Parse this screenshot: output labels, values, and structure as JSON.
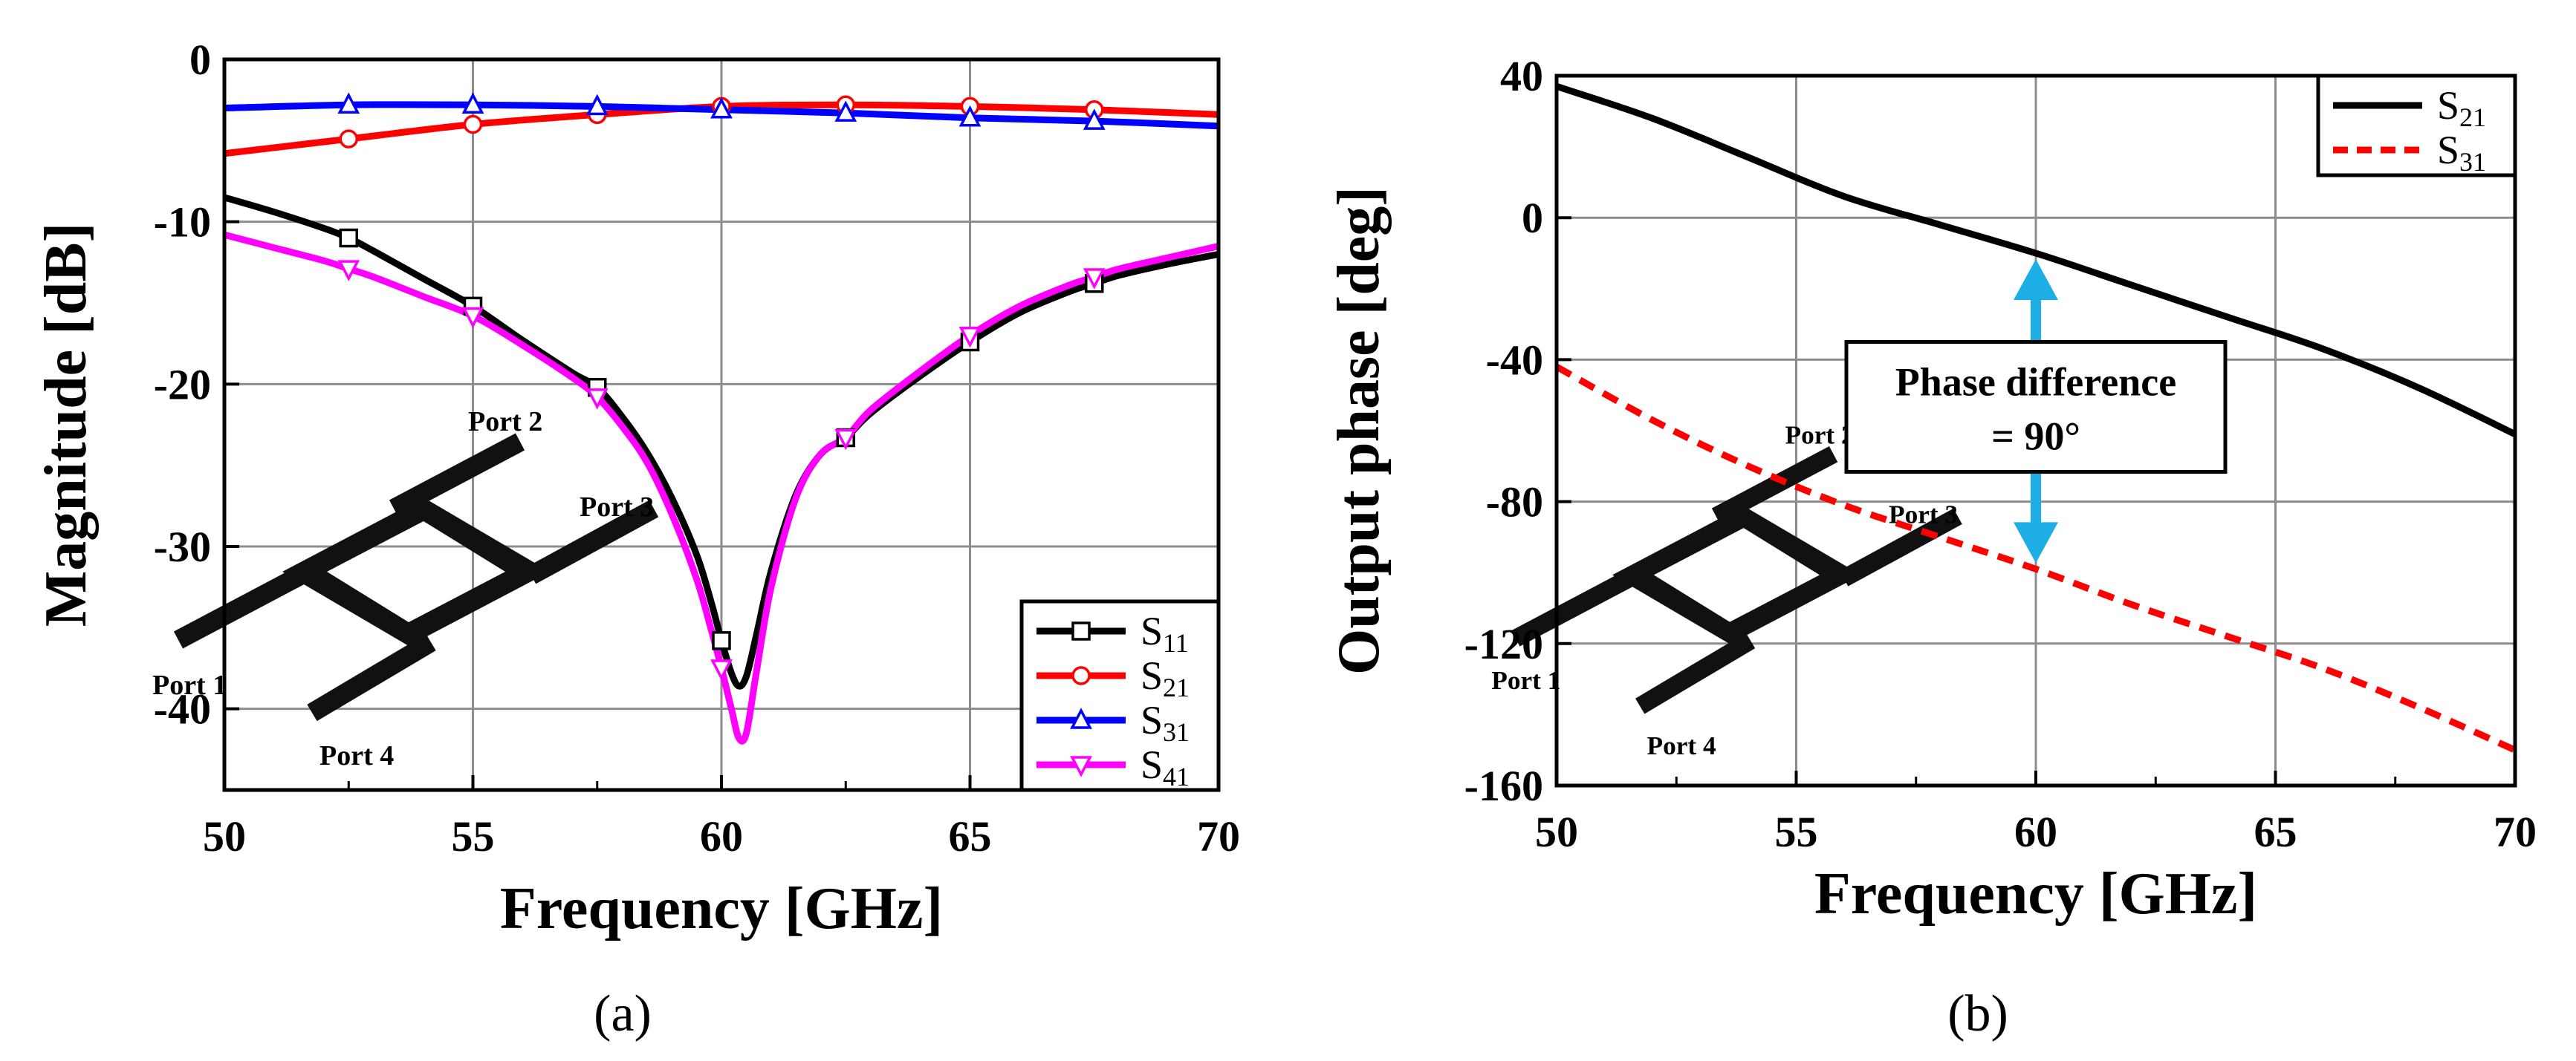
{
  "chart_data": [
    {
      "type": "line",
      "panel_label": "(a)",
      "xlabel": "Frequency [GHz]",
      "ylabel": "Magnitude [dB]",
      "xlim": [
        50,
        70
      ],
      "ylim": [
        -45,
        0
      ],
      "xticks": [
        50,
        55,
        60,
        65,
        70
      ],
      "yticks": [
        0,
        -10,
        -20,
        -30,
        -40
      ],
      "grid": true,
      "legend_position": "bottom-right",
      "series": [
        {
          "name": "S",
          "sub": "11",
          "color": "#000000",
          "marker": "square",
          "x": [
            50,
            51,
            52,
            52.5,
            53,
            54,
            55,
            56,
            57,
            57.5,
            58,
            58.5,
            59,
            59.5,
            59.8,
            60,
            60.2,
            60.35,
            60.5,
            60.7,
            61,
            61.5,
            62,
            62.5,
            63,
            64,
            65,
            66,
            67,
            67.5,
            68,
            69,
            70
          ],
          "y": [
            -8.5,
            -9.4,
            -10.4,
            -11,
            -11.8,
            -13.5,
            -15.2,
            -17.3,
            -19.3,
            -20.2,
            -22,
            -24.2,
            -27,
            -30.5,
            -33.5,
            -35.8,
            -37.8,
            -38.6,
            -38,
            -35.5,
            -31.5,
            -26.8,
            -24.3,
            -23.3,
            -21.8,
            -19.5,
            -17.4,
            -15.6,
            -14.3,
            -13.8,
            -13.3,
            -12.6,
            -12
          ]
        },
        {
          "name": "S",
          "sub": "21",
          "color": "#ff0000",
          "marker": "circle",
          "x": [
            50,
            52.5,
            55,
            57.5,
            60,
            62.5,
            65,
            67.5,
            70
          ],
          "y": [
            -5.8,
            -4.9,
            -4,
            -3.4,
            -2.9,
            -2.8,
            -2.9,
            -3.1,
            -3.4
          ]
        },
        {
          "name": "S",
          "sub": "31",
          "color": "#0000ff",
          "marker": "triangle-up",
          "x": [
            50,
            52.5,
            55,
            57.5,
            60,
            62.5,
            65,
            67.5,
            70
          ],
          "y": [
            -3,
            -2.8,
            -2.8,
            -2.9,
            -3.1,
            -3.3,
            -3.6,
            -3.8,
            -4.1
          ]
        },
        {
          "name": "S",
          "sub": "41",
          "color": "#ff00ff",
          "marker": "triangle-down",
          "x": [
            50,
            51,
            52,
            52.5,
            53,
            54,
            55,
            56,
            57,
            57.5,
            58,
            58.5,
            59,
            59.5,
            59.8,
            60,
            60.2,
            60.35,
            60.5,
            60.7,
            61,
            61.5,
            62,
            62.5,
            63,
            64,
            65,
            66,
            67,
            67.5,
            68,
            69,
            70
          ],
          "y": [
            -10.8,
            -11.6,
            -12.4,
            -12.9,
            -13.4,
            -14.6,
            -15.8,
            -17.6,
            -19.6,
            -20.8,
            -22.6,
            -24.8,
            -28,
            -32,
            -35.2,
            -37.5,
            -40,
            -41.8,
            -41.5,
            -37.8,
            -32.5,
            -27,
            -24.3,
            -23.3,
            -21.6,
            -19.2,
            -17,
            -15.2,
            -13.9,
            -13.4,
            -12.9,
            -12.2,
            -11.5
          ]
        }
      ],
      "inset": {
        "ports": [
          "Port 1",
          "Port 2",
          "Port 3",
          "Port 4"
        ]
      }
    },
    {
      "type": "line",
      "panel_label": "(b)",
      "xlabel": "Frequency [GHz]",
      "ylabel": "Output phase [deg]",
      "xlim": [
        50,
        70
      ],
      "ylim": [
        -160,
        40
      ],
      "xticks": [
        50,
        55,
        60,
        65,
        70
      ],
      "yticks": [
        40,
        0,
        -40,
        -80,
        -120,
        -160
      ],
      "grid": true,
      "legend_position": "top-right",
      "series": [
        {
          "name": "S",
          "sub": "21",
          "color": "#000000",
          "dash": "solid",
          "x": [
            50,
            52,
            54,
            56,
            58,
            60,
            62,
            64,
            66,
            68,
            70
          ],
          "y": [
            37,
            28,
            17,
            6,
            -2,
            -10,
            -19,
            -28,
            -37,
            -48,
            -61
          ]
        },
        {
          "name": "S",
          "sub": "31",
          "color": "#ff0000",
          "dash": "dashed",
          "x": [
            50,
            52,
            54,
            56,
            58,
            60,
            62,
            64,
            66,
            68,
            70
          ],
          "y": [
            -42,
            -57,
            -70,
            -81,
            -90,
            -99,
            -109,
            -118,
            -127,
            -138,
            -150
          ]
        }
      ],
      "annotation": {
        "text_line1": "Phase difference",
        "text_line2": "= 90°",
        "x": 60,
        "y_top": -10,
        "y_bottom": -99,
        "color": "#1eaee6"
      },
      "inset": {
        "ports": [
          "Port 1",
          "Port 2",
          "Port 3",
          "Port 4"
        ]
      }
    }
  ]
}
